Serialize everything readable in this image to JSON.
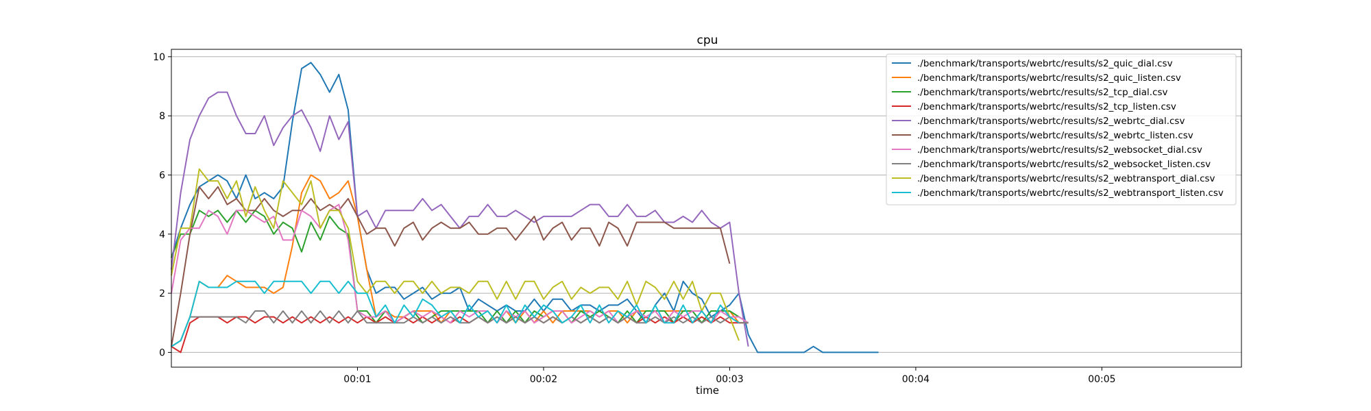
{
  "chart_data": {
    "type": "line",
    "title": "cpu",
    "xlabel": "time",
    "ylabel": "",
    "grid": "horizontal",
    "legend_position": "top-right",
    "xlim": [
      0,
      115
    ],
    "ylim": [
      -0.5,
      10.25
    ],
    "yticks": [
      0,
      2,
      4,
      6,
      8,
      10
    ],
    "xticks": [
      {
        "value": 20,
        "label": "00:01"
      },
      {
        "value": 40,
        "label": "00:02"
      },
      {
        "value": 60,
        "label": "00:03"
      },
      {
        "value": 80,
        "label": "00:04"
      },
      {
        "value": 100,
        "label": "00:05"
      }
    ],
    "series": [
      {
        "name": "./benchmark/transports/webrtc/results/s2_quic_dial.csv",
        "color": "#1f77b4",
        "values": [
          3.2,
          4.2,
          5.0,
          5.6,
          5.8,
          6.0,
          5.8,
          5.2,
          6.0,
          5.2,
          5.4,
          5.2,
          5.6,
          7.8,
          9.6,
          9.8,
          9.4,
          8.8,
          9.4,
          8.2,
          4.6,
          2.8,
          2.0,
          2.2,
          2.2,
          1.8,
          2.0,
          2.2,
          1.8,
          2.0,
          2.0,
          2.2,
          1.4,
          1.8,
          1.6,
          1.4,
          1.6,
          1.4,
          1.4,
          1.8,
          1.4,
          1.8,
          1.8,
          1.4,
          1.6,
          1.6,
          1.4,
          1.6,
          1.6,
          1.8,
          1.4,
          1.0,
          1.6,
          2.0,
          1.4,
          2.4,
          2.0,
          1.8,
          1.2,
          1.4,
          1.6,
          2.0,
          0.6,
          0,
          0,
          0,
          0,
          0,
          0,
          0.2,
          0,
          0,
          0,
          0,
          0,
          0,
          0
        ]
      },
      {
        "name": "./benchmark/transports/webrtc/results/s2_quic_listen.csv",
        "color": "#ff7f0e",
        "values": [
          0.2,
          0.4,
          1.2,
          2.4,
          2.2,
          2.2,
          2.6,
          2.4,
          2.2,
          2.2,
          2.2,
          2.0,
          2.2,
          3.6,
          5.4,
          6.0,
          5.8,
          5.2,
          5.4,
          5.8,
          4.6,
          2.8,
          1.2,
          1.4,
          1.2,
          1.2,
          1.4,
          1.4,
          1.4,
          1.0,
          1.4,
          1.4,
          1.4,
          1.4,
          1.4,
          1.0,
          1.4,
          1.0,
          1.4,
          1.0,
          1.4,
          1.0,
          1.4,
          1.4,
          1.4,
          1.4,
          1.2,
          1.4,
          1.4,
          1.0,
          1.4,
          1.4,
          1.4,
          1.4,
          1.4,
          1.4,
          1.4,
          1.4,
          1.0,
          1.4,
          1.4,
          1.0,
          1.0
        ]
      },
      {
        "name": "./benchmark/transports/webrtc/results/s2_tcp_dial.csv",
        "color": "#2ca02c",
        "values": [
          3.2,
          4.0,
          4.0,
          4.8,
          4.6,
          4.8,
          4.4,
          4.8,
          4.4,
          4.8,
          4.6,
          4.0,
          4.4,
          4.2,
          3.4,
          4.4,
          3.8,
          4.6,
          4.2,
          4.0,
          1.4,
          1.4,
          1.0,
          1.4,
          1.0,
          1.2,
          1.4,
          1.0,
          1.2,
          1.4,
          1.4,
          1.4,
          1.4,
          1.4,
          1.0,
          1.4,
          1.0,
          1.4,
          1.0,
          1.4,
          1.2,
          1.4,
          1.4,
          1.0,
          1.4,
          1.2,
          1.4,
          1.2,
          1.0,
          1.4,
          1.0,
          1.4,
          1.4,
          1.4,
          1.0,
          1.4,
          1.4,
          1.0,
          1.4,
          1.4,
          1.4,
          1.2,
          1.0
        ]
      },
      {
        "name": "./benchmark/transports/webrtc/results/s2_tcp_listen.csv",
        "color": "#d62728",
        "values": [
          0.2,
          0,
          1.0,
          1.2,
          1.2,
          1.2,
          1.0,
          1.2,
          1.2,
          1.0,
          1.2,
          1.2,
          1.0,
          1.2,
          1.0,
          1.2,
          1.0,
          1.2,
          1.0,
          1.2,
          1.0,
          1.2,
          1.0,
          1.2,
          1.0,
          1.2,
          1.0,
          1.2,
          1.0,
          1.2,
          1.0,
          1.2,
          1.0,
          1.2,
          1.0,
          1.2,
          1.0,
          1.2,
          1.0,
          1.2,
          1.0,
          1.2,
          1.0,
          1.2,
          1.0,
          1.2,
          1.0,
          1.2,
          1.0,
          1.2,
          1.0,
          1.2,
          1.0,
          1.2,
          1.0,
          1.2,
          1.0,
          1.2,
          1.0,
          1.2,
          1.0,
          1.0,
          1.0
        ]
      },
      {
        "name": "./benchmark/transports/webrtc/results/s2_webrtc_dial.csv",
        "color": "#9467bd",
        "values": [
          2.8,
          5.4,
          7.2,
          8.0,
          8.6,
          8.8,
          8.8,
          8.0,
          7.4,
          7.4,
          8.0,
          7.0,
          7.6,
          8.0,
          8.2,
          7.6,
          6.8,
          8.0,
          7.2,
          7.8,
          4.6,
          4.8,
          4.2,
          4.8,
          4.8,
          4.8,
          4.8,
          5.2,
          4.8,
          5.0,
          4.6,
          4.2,
          4.6,
          4.6,
          5.0,
          4.6,
          4.6,
          4.8,
          4.6,
          4.4,
          4.6,
          4.6,
          4.6,
          4.6,
          4.8,
          5.0,
          5.0,
          4.6,
          4.6,
          5.0,
          4.6,
          4.6,
          4.8,
          4.4,
          4.4,
          4.6,
          4.4,
          4.8,
          4.4,
          4.2,
          4.4,
          2.0,
          0.2
        ]
      },
      {
        "name": "./benchmark/transports/webrtc/results/s2_webrtc_listen.csv",
        "color": "#8c564b",
        "values": [
          0.2,
          2.0,
          4.0,
          5.6,
          5.2,
          5.6,
          5.0,
          5.2,
          4.8,
          4.8,
          5.2,
          4.8,
          4.6,
          4.8,
          4.8,
          5.2,
          4.8,
          5.0,
          4.8,
          5.2,
          4.6,
          4.0,
          4.2,
          4.2,
          3.6,
          4.2,
          4.4,
          3.8,
          4.2,
          4.4,
          4.2,
          4.2,
          4.4,
          4.0,
          4.0,
          4.2,
          4.2,
          3.8,
          4.2,
          4.6,
          3.8,
          4.2,
          4.4,
          3.8,
          4.2,
          4.2,
          3.6,
          4.4,
          4.2,
          3.6,
          4.4,
          4.4,
          4.4,
          4.4,
          4.2,
          4.2,
          4.2,
          4.2,
          4.2,
          4.2,
          3.0
        ]
      },
      {
        "name": "./benchmark/transports/webrtc/results/s2_websocket_dial.csv",
        "color": "#e377c2",
        "values": [
          2.0,
          3.8,
          4.2,
          4.2,
          4.8,
          4.6,
          4.0,
          4.8,
          4.8,
          4.6,
          4.4,
          4.6,
          3.8,
          3.8,
          4.8,
          4.6,
          4.2,
          4.8,
          5.0,
          3.8,
          1.4,
          1.2,
          1.2,
          1.4,
          1.0,
          1.2,
          1.4,
          1.2,
          1.4,
          1.2,
          1.0,
          1.4,
          1.2,
          1.4,
          1.4,
          1.0,
          1.4,
          1.2,
          1.4,
          1.0,
          1.2,
          1.4,
          1.4,
          1.0,
          1.2,
          1.4,
          1.2,
          1.4,
          1.0,
          1.2,
          1.4,
          1.2,
          1.4,
          1.0,
          1.4,
          1.2,
          1.4,
          1.4,
          1.0,
          1.4,
          1.2,
          1.2,
          1.0
        ]
      },
      {
        "name": "./benchmark/transports/webrtc/results/s2_websocket_listen.csv",
        "color": "#7f7f7f",
        "values": [
          0.2,
          0.4,
          1.2,
          1.2,
          1.2,
          1.2,
          1.2,
          1.2,
          1.0,
          1.4,
          1.4,
          1.0,
          1.4,
          1.0,
          1.4,
          1.0,
          1.4,
          1.0,
          1.4,
          1.0,
          1.4,
          1.0,
          1.0,
          1.0,
          1.0,
          1.0,
          1.2,
          1.0,
          1.2,
          1.0,
          1.2,
          1.0,
          1.0,
          1.2,
          1.0,
          1.2,
          1.0,
          1.2,
          1.0,
          1.2,
          1.0,
          1.2,
          1.0,
          1.2,
          1.0,
          1.2,
          1.0,
          1.2,
          1.0,
          1.2,
          1.0,
          1.0,
          1.2,
          1.0,
          1.2,
          1.0,
          1.2,
          1.0,
          1.2,
          1.0,
          1.2,
          1.0,
          1.0
        ]
      },
      {
        "name": "./benchmark/transports/webrtc/results/s2_webtransport_dial.csv",
        "color": "#bcbd22",
        "values": [
          2.6,
          4.2,
          4.2,
          6.2,
          5.8,
          5.8,
          5.2,
          5.8,
          4.6,
          5.6,
          4.8,
          4.2,
          5.8,
          5.4,
          5.0,
          5.8,
          4.2,
          4.8,
          4.8,
          4.2,
          2.4,
          2.0,
          2.4,
          2.4,
          2.0,
          2.4,
          2.4,
          2.0,
          2.4,
          2.0,
          2.2,
          2.2,
          2.0,
          2.4,
          2.4,
          1.8,
          2.4,
          1.8,
          2.4,
          2.4,
          1.8,
          2.2,
          2.4,
          1.8,
          2.2,
          2.0,
          2.2,
          2.2,
          1.8,
          2.4,
          1.6,
          2.4,
          2.2,
          1.8,
          2.4,
          1.8,
          2.4,
          1.4,
          2.0,
          2.0,
          1.2,
          0.4
        ]
      },
      {
        "name": "./benchmark/transports/webrtc/results/s2_webtransport_listen.csv",
        "color": "#17becf",
        "values": [
          0.2,
          0.4,
          1.2,
          2.4,
          2.2,
          2.2,
          2.2,
          2.4,
          2.4,
          2.4,
          2.0,
          2.4,
          2.4,
          2.4,
          2.4,
          2.0,
          2.4,
          2.4,
          2.0,
          2.4,
          2.0,
          2.0,
          1.2,
          1.6,
          1.0,
          1.6,
          1.2,
          1.8,
          1.6,
          1.2,
          1.4,
          1.0,
          1.6,
          1.2,
          1.4,
          1.0,
          1.6,
          1.0,
          1.6,
          1.2,
          1.6,
          1.4,
          1.0,
          1.2,
          1.6,
          1.0,
          1.6,
          1.0,
          1.4,
          1.2,
          1.6,
          1.0,
          1.6,
          1.0,
          1.0,
          1.6,
          1.0,
          1.4,
          1.0,
          1.6,
          1.2,
          1.0
        ]
      }
    ]
  }
}
